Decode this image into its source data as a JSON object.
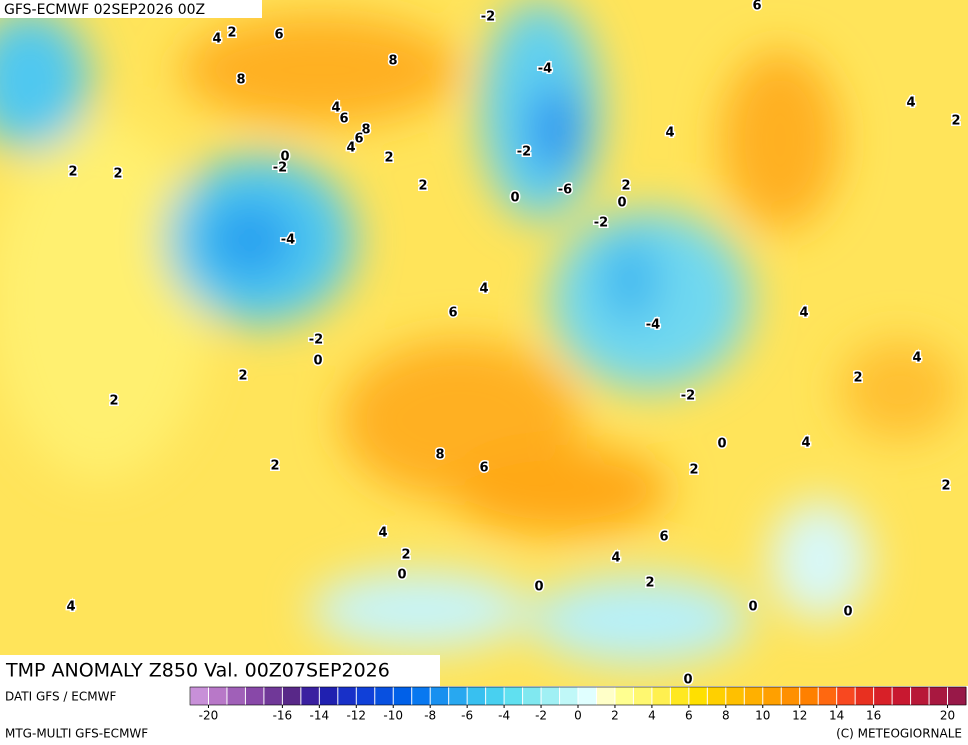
{
  "header": {
    "run": "GFS-ECMWF 02SEP2026 00Z"
  },
  "title": "TMP ANOMALY Z850 Val. 00Z07SEP2026",
  "footer": {
    "source": "DATI GFS / ECMWF",
    "model": "MTG-MULTI GFS-ECMWF",
    "credit": "(C) METEOGIORNALE"
  },
  "contour_labels": [
    -2,
    6,
    4,
    2,
    6,
    8,
    -4,
    8,
    4,
    4,
    6,
    8,
    4,
    6,
    4,
    2,
    0,
    -2,
    -2,
    2,
    -6,
    2,
    2,
    2,
    2,
    0,
    0,
    -2,
    -4,
    4,
    6,
    4,
    -4,
    -2,
    0,
    2,
    4,
    2,
    2,
    -2,
    0,
    4,
    8,
    6,
    2,
    2,
    2,
    6,
    4,
    2,
    4,
    0,
    2,
    0,
    4,
    0,
    0,
    0
  ],
  "colorbar": {
    "lim": [
      -21,
      21
    ],
    "ticks": [
      -20,
      -16,
      -14,
      -12,
      -10,
      -8,
      -6,
      -4,
      -2,
      0,
      2,
      4,
      6,
      8,
      10,
      12,
      14,
      16,
      20
    ],
    "colors": [
      "#c890d8",
      "#b878c8",
      "#a060b8",
      "#8848a8",
      "#703898",
      "#582888",
      "#3a20a0",
      "#2020b0",
      "#1830c8",
      "#1040d8",
      "#0850e0",
      "#0060e8",
      "#0878f0",
      "#1890f0",
      "#28a8f0",
      "#38c0f0",
      "#48d0f0",
      "#60e0f0",
      "#80e8f0",
      "#a0f0f4",
      "#c0f8f8",
      "#e0ffff",
      "#ffffc8",
      "#ffff90",
      "#fff870",
      "#fff050",
      "#ffe820",
      "#ffe000",
      "#ffd000",
      "#ffc000",
      "#ffb000",
      "#ffa000",
      "#ff9000",
      "#ff8000",
      "#ff6810",
      "#f84820",
      "#e83020",
      "#d82028",
      "#c81830",
      "#b81838",
      "#a81840",
      "#981848"
    ]
  }
}
